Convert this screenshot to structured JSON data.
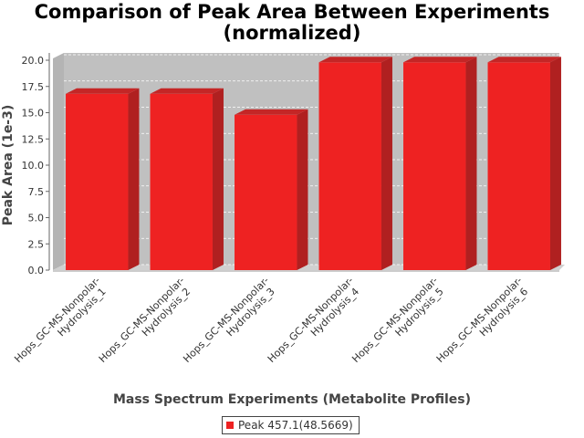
{
  "chart_data": {
    "type": "bar",
    "title_line1": "Comparison of Peak Area Between Experiments",
    "title_line2": "(normalized)",
    "xlabel": "Mass Spectrum Experiments (Metabolite Profiles)",
    "ylabel": "Peak Area (1e-3)",
    "categories": [
      "Hops_GC-MS-Nonpolar-Hydrolysis_1",
      "Hops_GC-MS-Nonpolar-Hydrolysis_2",
      "Hops_GC-MS-Nonpolar-Hydrolysis_3",
      "Hops_GC-MS-Nonpolar-Hydrolysis_4",
      "Hops_GC-MS-Nonpolar-Hydrolysis_5",
      "Hops_GC-MS-Nonpolar-Hydrolysis_6"
    ],
    "category_lines": [
      [
        "Hops_GC-MS-Nonpolar-",
        "Hydrolysis_1"
      ],
      [
        "Hops_GC-MS-Nonpolar-",
        "Hydrolysis_2"
      ],
      [
        "Hops_GC-MS-Nonpolar-",
        "Hydrolysis_3"
      ],
      [
        "Hops_GC-MS-Nonpolar-",
        "Hydrolysis_4"
      ],
      [
        "Hops_GC-MS-Nonpolar-",
        "Hydrolysis_5"
      ],
      [
        "Hops_GC-MS-Nonpolar-",
        "Hydrolysis_6"
      ]
    ],
    "series": [
      {
        "name": "Peak 457.1(48.5669)",
        "color": "#ee2222",
        "values": [
          16.8,
          16.8,
          14.8,
          19.8,
          19.8,
          19.8
        ]
      }
    ],
    "ylim": [
      0,
      20
    ],
    "yticks": [
      "0.0",
      "2.5",
      "5.0",
      "7.5",
      "10.0",
      "12.5",
      "15.0",
      "17.5",
      "20.0"
    ],
    "grid": true,
    "legend_position": "bottom",
    "plot_background": "#c0c0c0",
    "bar_color": "#ee2222",
    "bar_side_color": "#b02020",
    "bar_top_color": "#c42626"
  }
}
